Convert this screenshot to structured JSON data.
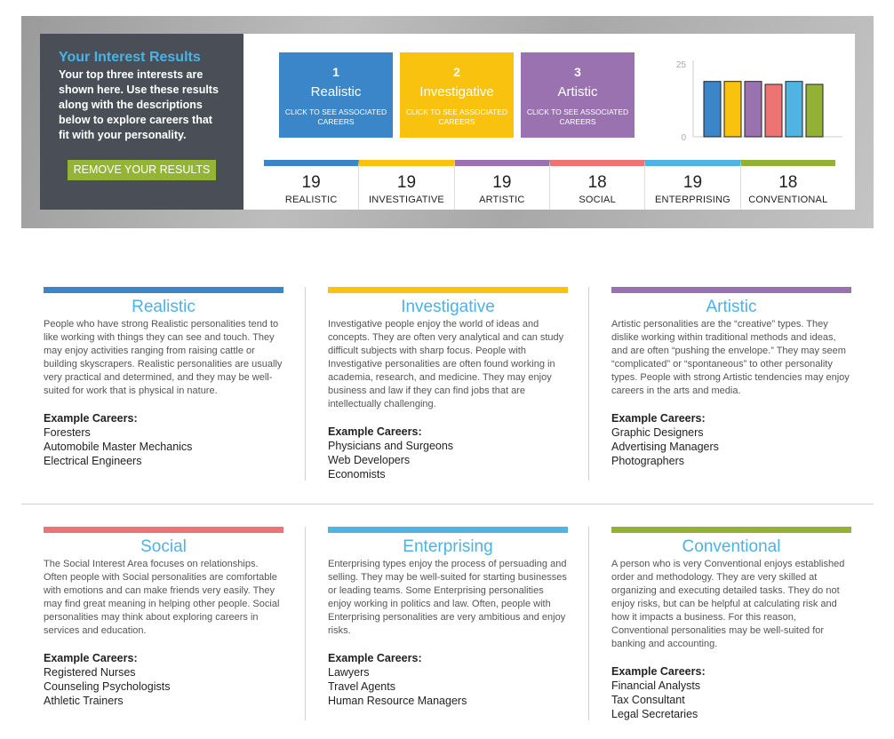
{
  "colors": {
    "realistic": "#3a86c8",
    "investigative": "#f9c20f",
    "artistic": "#9b72b0",
    "social": "#ee7373",
    "enterprising": "#4fb4e2",
    "conventional": "#93b135"
  },
  "hero": {
    "title": "Your Interest Results",
    "description": "Your top three interests are shown here. Use these results along with the descriptions below to explore careers that fit with your personality.",
    "remove_button": "REMOVE YOUR RESULTS"
  },
  "top_three": [
    {
      "rank": "1",
      "name": "Realistic",
      "subtitle": "CLICK TO SEE ASSOCIATED CAREERS",
      "color": "#3a86c8"
    },
    {
      "rank": "2",
      "name": "Investigative",
      "subtitle": "CLICK TO SEE ASSOCIATED CAREERS",
      "color": "#f9c20f"
    },
    {
      "rank": "3",
      "name": "Artistic",
      "subtitle": "CLICK TO SEE ASSOCIATED CAREERS",
      "color": "#9b72b0"
    }
  ],
  "chart_data": {
    "type": "bar",
    "categories": [
      "Realistic",
      "Investigative",
      "Artistic",
      "Social",
      "Enterprising",
      "Conventional"
    ],
    "values": [
      19,
      19,
      19,
      18,
      19,
      18
    ],
    "colors": [
      "#3a86c8",
      "#f9c20f",
      "#9b72b0",
      "#ee7373",
      "#4fb4e2",
      "#93b135"
    ],
    "ylim": [
      0,
      25
    ],
    "yticks": [
      "25",
      "0"
    ]
  },
  "scores": [
    {
      "value": "19",
      "label": "REALISTIC",
      "color": "#3a86c8"
    },
    {
      "value": "19",
      "label": "INVESTIGATIVE",
      "color": "#f9c20f"
    },
    {
      "value": "19",
      "label": "ARTISTIC",
      "color": "#9b72b0"
    },
    {
      "value": "18",
      "label": "SOCIAL",
      "color": "#ee7373"
    },
    {
      "value": "19",
      "label": "ENTERPRISING",
      "color": "#4fb4e2"
    },
    {
      "value": "18",
      "label": "CONVENTIONAL",
      "color": "#93b135"
    }
  ],
  "cards": [
    {
      "title": "Realistic",
      "color": "#3a86c8",
      "description": "People who have strong Realistic personalities tend to like working with things they can see and touch. They may enjoy activities ranging from raising cattle or building skyscrapers. Realistic personalities are usually very practical and determined, and they may be well-suited for work that is physical in nature.",
      "examples_heading": "Example Careers:",
      "examples": [
        "Foresters",
        "Automobile Master Mechanics",
        "Electrical Engineers"
      ]
    },
    {
      "title": "Investigative",
      "color": "#f9c20f",
      "description": "Investigative people enjoy the world of ideas and concepts. They are often very analytical and can study difficult subjects with sharp focus. People with Investigative personalities are often found working in academia, research, and medicine. They may enjoy business and law if they can find jobs that are intellectually challenging.",
      "examples_heading": "Example Careers:",
      "examples": [
        "Physicians and Surgeons",
        "Web Developers",
        "Economists"
      ]
    },
    {
      "title": "Artistic",
      "color": "#9b72b0",
      "description": "Artistic personalities are the “creative” types. They dislike working within traditional methods and ideas, and are often “pushing the envelope.” They may seem “complicated” or “spontaneous” to other personality types. People with strong Artistic tendencies may enjoy careers in the arts and media.",
      "examples_heading": "Example Careers:",
      "examples": [
        "Graphic Designers",
        "Advertising Managers",
        "Photographers"
      ]
    },
    {
      "title": "Social",
      "color": "#ee7373",
      "description": "The Social Interest Area focuses on relationships. Often people with Social personalities are comfortable with emotions and can make friends very easily. They may find great meaning in helping other people. Social personalities may think about exploring careers in services and education.",
      "examples_heading": "Example Careers:",
      "examples": [
        "Registered Nurses",
        "Counseling Psychologists",
        "Athletic Trainers"
      ]
    },
    {
      "title": "Enterprising",
      "color": "#4fb4e2",
      "description": "Enterprising types enjoy the process of persuading and selling. They may be well-suited for starting businesses or leading teams. Some Enterprising personalities enjoy working in politics and law. Often, people with Enterprising personalities are very ambitious and enjoy risks.",
      "examples_heading": "Example Careers:",
      "examples": [
        "Lawyers",
        "Travel Agents",
        "Human Resource Managers"
      ]
    },
    {
      "title": "Conventional",
      "color": "#93b135",
      "description": "A person who is very Conventional enjoys established order and methodology. They are very skilled at organizing and executing detailed tasks. They do not enjoy risks, but can be helpful at calculating risk and how it impacts a business. For this reason, Conventional personalities may be well-suited for banking and accounting.",
      "examples_heading": "Example Careers:",
      "examples": [
        "Financial Analysts",
        "Tax Consultant",
        "Legal Secretaries"
      ]
    }
  ]
}
